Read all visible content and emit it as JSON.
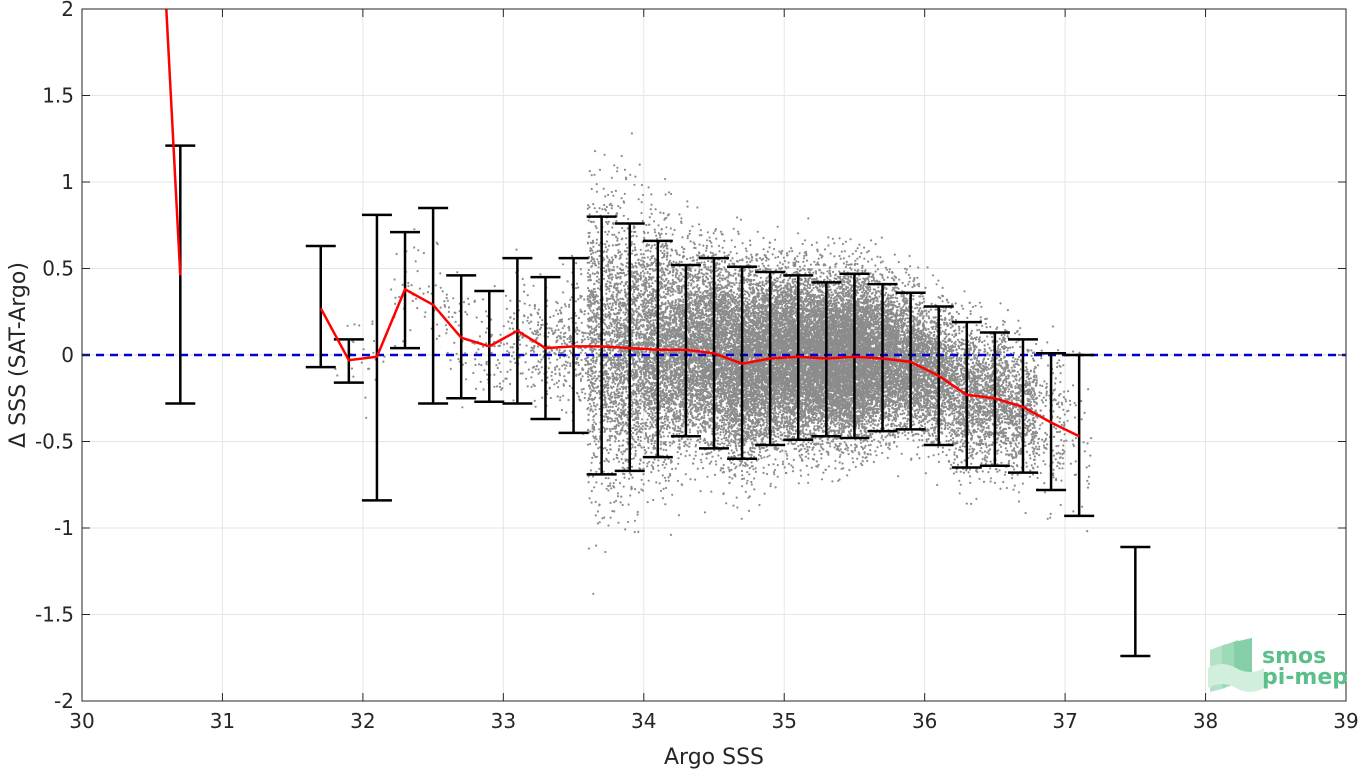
{
  "chart_data": {
    "type": "scatter",
    "xlabel": "Argo SSS",
    "ylabel": "Δ SSS (SAT-Argo)",
    "xlim": [
      30,
      39
    ],
    "ylim": [
      -2,
      2
    ],
    "xticks": [
      30,
      31,
      32,
      33,
      34,
      35,
      36,
      37,
      38,
      39
    ],
    "yticks": [
      -2,
      -1.5,
      -1,
      -0.5,
      0,
      0.5,
      1,
      1.5,
      2
    ],
    "grid": true,
    "zero_line": {
      "y": 0,
      "color": "#0000cc",
      "style": "dashed"
    },
    "colors": {
      "scatter": "#8c8c8c",
      "mean_line": "#ff0000",
      "errorbar": "#000000",
      "zero_line": "#0000cc"
    },
    "mean_line": {
      "x": [
        30.6,
        30.7,
        null,
        31.7,
        31.9,
        32.1,
        32.3,
        32.5,
        32.7,
        32.9,
        33.1,
        33.3,
        33.5,
        33.7,
        33.9,
        34.1,
        34.3,
        34.5,
        34.7,
        34.9,
        35.1,
        35.3,
        35.5,
        35.7,
        35.9,
        36.1,
        36.3,
        36.5,
        36.7,
        36.9,
        37.1
      ],
      "y": [
        2.0,
        0.46,
        null,
        0.27,
        -0.03,
        -0.01,
        0.38,
        0.29,
        0.1,
        0.05,
        0.14,
        0.04,
        0.05,
        0.05,
        0.04,
        0.03,
        0.03,
        0.01,
        -0.05,
        -0.02,
        -0.01,
        -0.02,
        -0.01,
        -0.02,
        -0.04,
        -0.12,
        -0.23,
        -0.25,
        -0.3,
        -0.39,
        -0.47
      ]
    },
    "error_bars": [
      {
        "x": 30.7,
        "low": -0.28,
        "high": 1.21
      },
      {
        "x": 31.7,
        "low": -0.07,
        "high": 0.63
      },
      {
        "x": 31.9,
        "low": -0.16,
        "high": 0.09
      },
      {
        "x": 32.1,
        "low": -0.84,
        "high": 0.81
      },
      {
        "x": 32.3,
        "low": 0.04,
        "high": 0.71
      },
      {
        "x": 32.5,
        "low": -0.28,
        "high": 0.85
      },
      {
        "x": 32.7,
        "low": -0.25,
        "high": 0.46
      },
      {
        "x": 32.9,
        "low": -0.27,
        "high": 0.37
      },
      {
        "x": 33.1,
        "low": -0.28,
        "high": 0.56
      },
      {
        "x": 33.3,
        "low": -0.37,
        "high": 0.45
      },
      {
        "x": 33.5,
        "low": -0.45,
        "high": 0.56
      },
      {
        "x": 33.7,
        "low": -0.69,
        "high": 0.8
      },
      {
        "x": 33.9,
        "low": -0.67,
        "high": 0.76
      },
      {
        "x": 34.1,
        "low": -0.59,
        "high": 0.66
      },
      {
        "x": 34.3,
        "low": -0.47,
        "high": 0.52
      },
      {
        "x": 34.5,
        "low": -0.54,
        "high": 0.56
      },
      {
        "x": 34.7,
        "low": -0.6,
        "high": 0.51
      },
      {
        "x": 34.9,
        "low": -0.52,
        "high": 0.48
      },
      {
        "x": 35.1,
        "low": -0.49,
        "high": 0.46
      },
      {
        "x": 35.3,
        "low": -0.47,
        "high": 0.42
      },
      {
        "x": 35.5,
        "low": -0.48,
        "high": 0.47
      },
      {
        "x": 35.7,
        "low": -0.44,
        "high": 0.41
      },
      {
        "x": 35.9,
        "low": -0.43,
        "high": 0.36
      },
      {
        "x": 36.1,
        "low": -0.52,
        "high": 0.28
      },
      {
        "x": 36.3,
        "low": -0.65,
        "high": 0.19
      },
      {
        "x": 36.5,
        "low": -0.64,
        "high": 0.13
      },
      {
        "x": 36.7,
        "low": -0.68,
        "high": 0.09
      },
      {
        "x": 36.9,
        "low": -0.78,
        "high": 0.01
      },
      {
        "x": 37.1,
        "low": -0.93,
        "high": 0.0
      },
      {
        "x": 37.5,
        "low": -1.74,
        "high": -1.11
      }
    ],
    "scatter_density": [
      {
        "x": 31.9,
        "sd": 0.25,
        "weight": 1
      },
      {
        "x": 32.1,
        "sd": 0.35,
        "weight": 1
      },
      {
        "x": 32.3,
        "sd": 0.35,
        "weight": 2
      },
      {
        "x": 32.5,
        "sd": 0.35,
        "weight": 2
      },
      {
        "x": 32.7,
        "sd": 0.3,
        "weight": 3
      },
      {
        "x": 32.9,
        "sd": 0.3,
        "weight": 4
      },
      {
        "x": 33.1,
        "sd": 0.35,
        "weight": 6
      },
      {
        "x": 33.3,
        "sd": 0.35,
        "weight": 10
      },
      {
        "x": 33.5,
        "sd": 0.4,
        "weight": 14
      },
      {
        "x": 33.7,
        "sd": 0.8,
        "weight": 70
      },
      {
        "x": 33.9,
        "sd": 0.75,
        "weight": 90
      },
      {
        "x": 34.1,
        "sd": 0.65,
        "weight": 110
      },
      {
        "x": 34.3,
        "sd": 0.55,
        "weight": 120
      },
      {
        "x": 34.5,
        "sd": 0.55,
        "weight": 140
      },
      {
        "x": 34.7,
        "sd": 0.55,
        "weight": 160
      },
      {
        "x": 34.9,
        "sd": 0.5,
        "weight": 180
      },
      {
        "x": 35.1,
        "sd": 0.48,
        "weight": 190
      },
      {
        "x": 35.3,
        "sd": 0.45,
        "weight": 210
      },
      {
        "x": 35.5,
        "sd": 0.45,
        "weight": 220
      },
      {
        "x": 35.7,
        "sd": 0.42,
        "weight": 150
      },
      {
        "x": 35.9,
        "sd": 0.4,
        "weight": 110
      },
      {
        "x": 36.1,
        "sd": 0.4,
        "weight": 80
      },
      {
        "x": 36.3,
        "sd": 0.42,
        "weight": 60
      },
      {
        "x": 36.5,
        "sd": 0.38,
        "weight": 55
      },
      {
        "x": 36.7,
        "sd": 0.38,
        "weight": 40
      },
      {
        "x": 36.9,
        "sd": 0.4,
        "weight": 12
      },
      {
        "x": 37.1,
        "sd": 0.45,
        "weight": 3
      }
    ]
  },
  "logo": {
    "line1": "smos",
    "line2": "pi-mep",
    "color": "#5bbf8a"
  }
}
